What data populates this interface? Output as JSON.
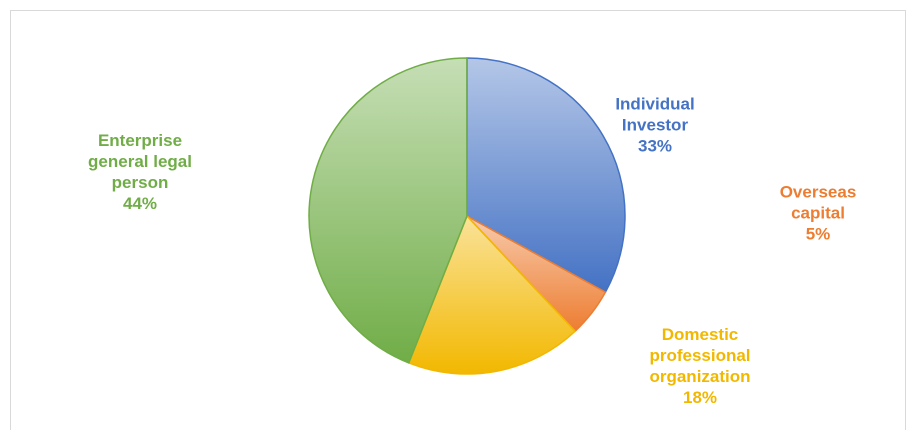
{
  "chart_data": {
    "type": "pie",
    "categories": [
      "Individual Investor",
      "Overseas capital",
      "Domestic professional organization",
      "Enterprise general legal person"
    ],
    "values": [
      33,
      5,
      18,
      44
    ],
    "value_labels": [
      "33%",
      "5%",
      "18%",
      "44%"
    ],
    "colors": [
      "#4472c4",
      "#ed7d31",
      "#f2b800",
      "#70ad47"
    ],
    "start_angle": 0,
    "direction": "clockwise"
  }
}
